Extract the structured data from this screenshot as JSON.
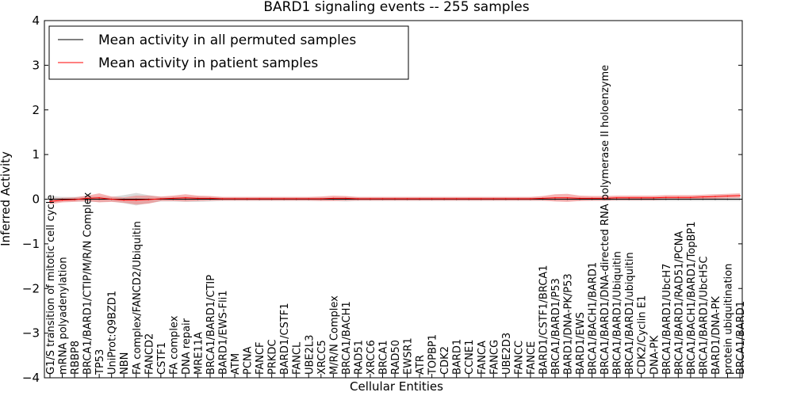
{
  "chart_data": {
    "type": "line",
    "title": "BARD1 signaling events -- 255 samples",
    "xlabel": "Cellular Entities",
    "ylabel": "Inferred Activity",
    "ylim": [
      -4,
      4
    ],
    "yticks": [
      -4,
      -3,
      -2,
      -1,
      0,
      1,
      2,
      3,
      4
    ],
    "ytick_labels": [
      "−4",
      "−3",
      "−2",
      "−1",
      "0",
      "1",
      "2",
      "3",
      "4"
    ],
    "legend_position": "top-left",
    "categories": [
      "G1/S transition of mitotic cell cycle",
      "mRNA polyadenylation",
      "RBBP8",
      "BRCA1/BARD1/CTIP/M/R/N Complex",
      "TP53",
      "UniProt:Q9BZD1",
      "NBN",
      "FA complex/FANCD2/Ubiquitin",
      "FANCD2",
      "CSTF1",
      "FA complex",
      "DNA repair",
      "MRE11A",
      "BRCA1/BARD1/CTIP",
      "BARD1/EWS-Fli1",
      "ATM",
      "PCNA",
      "FANCF",
      "PRKDC",
      "BARD1/CSTF1",
      "FANCL",
      "UBE2L3",
      "XRCC5",
      "M/R/N Complex",
      "BRCA1/BACH1",
      "RAD51",
      "XRCC6",
      "BRCA1",
      "RAD50",
      "EWSR1",
      "ATR",
      "TOPBP1",
      "CDK2",
      "BARD1",
      "CCNE1",
      "FANCA",
      "FANCG",
      "UBE2D3",
      "FANCC",
      "FANCE",
      "BARD1/CSTF1/BRCA1",
      "BRCA1/BARD1/P53",
      "BARD1/DNA-PK/P53",
      "BARD1/EWS",
      "BRCA1/BACH1/BARD1",
      "BRCA1/BARD1/DNA-directed RNA polymerase II holoenzyme",
      "BRCA1/BARD1/Ubiquitin",
      "BRCA1/BARD1/ubiquitin",
      "CDK2/Cyclin E1",
      "DNA-PK",
      "BRCA1/BARD1/UbcH7",
      "BRCA1/BARD1/RAD51/PCNA",
      "BRCA1/BACH1/BARD1/TopBP1",
      "BRCA1/BARD1/UbcH5C",
      "BARD1/DNA-PK",
      "protein ubiquitination",
      "BRCA1/BARD1"
    ],
    "series": [
      {
        "name": "Mean activity in all permuted samples",
        "color": "#000000",
        "band_color": "#bbbbbb",
        "values": [
          0,
          0,
          0,
          0,
          0,
          0,
          0,
          0,
          0,
          0,
          0,
          0,
          0,
          0,
          0,
          0,
          0,
          0,
          0,
          0,
          0,
          0,
          0,
          0,
          0,
          0,
          0,
          0,
          0,
          0,
          0,
          0,
          0,
          0,
          0,
          0,
          0,
          0,
          0,
          0,
          0,
          0,
          0,
          0,
          0,
          0,
          0,
          0,
          0,
          0,
          0,
          0,
          0,
          0,
          0,
          0,
          0
        ],
        "spread": [
          0.07,
          0.05,
          0.05,
          0.06,
          0.06,
          0.05,
          0.09,
          0.14,
          0.09,
          0.05,
          0.05,
          0.06,
          0.06,
          0.05,
          0.04,
          0.04,
          0.04,
          0.04,
          0.04,
          0.04,
          0.04,
          0.04,
          0.04,
          0.04,
          0.05,
          0.04,
          0.04,
          0.04,
          0.04,
          0.04,
          0.04,
          0.04,
          0.04,
          0.04,
          0.04,
          0.04,
          0.04,
          0.04,
          0.04,
          0.04,
          0.04,
          0.04,
          0.04,
          0.04,
          0.04,
          0.04,
          0.04,
          0.04,
          0.04,
          0.04,
          0.04,
          0.04,
          0.04,
          0.04,
          0.04,
          0.04,
          0.04
        ]
      },
      {
        "name": "Mean activity in patient samples",
        "color": "#ff0000",
        "band_color": "#f08080",
        "values": [
          -0.05,
          -0.02,
          -0.01,
          0.02,
          0.03,
          0,
          -0.02,
          -0.02,
          -0.01,
          0.01,
          0.02,
          0.03,
          0.02,
          0.02,
          0.01,
          0.01,
          0.01,
          0.01,
          0.01,
          0.01,
          0.01,
          0.01,
          0.01,
          0.02,
          0.02,
          0.01,
          0.01,
          0.01,
          0.01,
          0.01,
          0.01,
          0.01,
          0.01,
          0.01,
          0.01,
          0.01,
          0.01,
          0.01,
          0.01,
          0.01,
          0.02,
          0.03,
          0.03,
          0.02,
          0.02,
          0.02,
          0.03,
          0.03,
          0.03,
          0.03,
          0.04,
          0.04,
          0.04,
          0.05,
          0.06,
          0.07,
          0.08
        ],
        "spread": [
          0.06,
          0.05,
          0.05,
          0.06,
          0.1,
          0.06,
          0.06,
          0.1,
          0.09,
          0.05,
          0.06,
          0.08,
          0.06,
          0.05,
          0.04,
          0.04,
          0.04,
          0.04,
          0.04,
          0.04,
          0.04,
          0.04,
          0.05,
          0.06,
          0.05,
          0.04,
          0.04,
          0.04,
          0.04,
          0.04,
          0.04,
          0.04,
          0.04,
          0.04,
          0.04,
          0.04,
          0.04,
          0.04,
          0.04,
          0.04,
          0.05,
          0.08,
          0.09,
          0.06,
          0.05,
          0.05,
          0.05,
          0.05,
          0.05,
          0.05,
          0.05,
          0.05,
          0.05,
          0.05,
          0.05,
          0.05,
          0.05
        ]
      }
    ]
  }
}
